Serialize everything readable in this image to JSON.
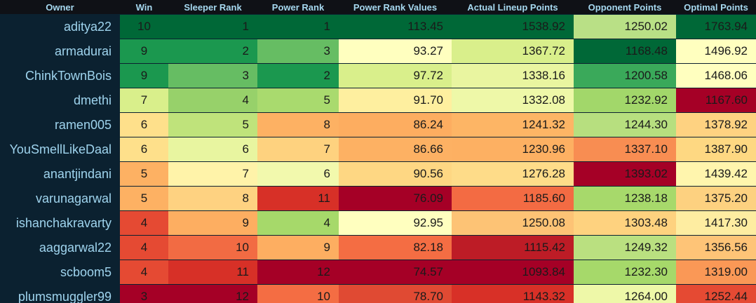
{
  "table": {
    "columns": [
      "Owner",
      "Win",
      "Sleeper Rank",
      "Power Rank",
      "Power Rank Values",
      "Actual Lineup Points",
      "Opponent Points",
      "Optimal Points"
    ],
    "rows": [
      {
        "owner": "aditya22",
        "cells": [
          "10",
          "1",
          "1",
          "113.45",
          "1538.92",
          "1250.02",
          "1763.94"
        ],
        "colors": [
          "#006837",
          "#006837",
          "#006837",
          "#006837",
          "#006837",
          "#b9e086",
          "#006837"
        ]
      },
      {
        "owner": "armadurai",
        "cells": [
          "9",
          "2",
          "3",
          "93.27",
          "1367.72",
          "1168.48",
          "1496.92"
        ],
        "colors": [
          "#1b984f",
          "#1b984f",
          "#66bd63",
          "#ffffbf",
          "#d9ef8b",
          "#006837",
          "#ffffbf"
        ]
      },
      {
        "owner": "ChinkTownBois",
        "cells": [
          "9",
          "3",
          "2",
          "97.72",
          "1338.16",
          "1200.58",
          "1468.06"
        ],
        "colors": [
          "#1b984f",
          "#66bd63",
          "#1b984f",
          "#d9ef8b",
          "#e9f5a0",
          "#3aa95a",
          "#ffffbf"
        ]
      },
      {
        "owner": "dmethi",
        "cells": [
          "7",
          "4",
          "5",
          "91.70",
          "1332.08",
          "1232.92",
          "1167.60"
        ],
        "colors": [
          "#d9ef8b",
          "#97d16a",
          "#a9da6e",
          "#feef9f",
          "#eef8a8",
          "#a2d76a",
          "#a50026"
        ]
      },
      {
        "owner": "ramen005",
        "cells": [
          "6",
          "5",
          "8",
          "86.24",
          "1241.32",
          "1244.30",
          "1378.92"
        ],
        "colors": [
          "#fee08b",
          "#bfe37b",
          "#fdb163",
          "#fdad60",
          "#fdb565",
          "#b7df7f",
          "#fed281"
        ]
      },
      {
        "owner": "YouSmellLikeDaal",
        "cells": [
          "6",
          "6",
          "7",
          "86.66",
          "1230.96",
          "1337.10",
          "1387.90"
        ],
        "colors": [
          "#fee08b",
          "#e8f5a0",
          "#fed27f",
          "#fdb163",
          "#fdb062",
          "#f88d52",
          "#fed882"
        ]
      },
      {
        "owner": "anantjindani",
        "cells": [
          "5",
          "7",
          "6",
          "90.56",
          "1276.28",
          "1393.02",
          "1439.42"
        ],
        "colors": [
          "#fdb163",
          "#fff3a9",
          "#f2f9ad",
          "#fed783",
          "#fedc89",
          "#a50026",
          "#fff5ad"
        ]
      },
      {
        "owner": "varunagarwal",
        "cells": [
          "5",
          "8",
          "11",
          "76.09",
          "1185.60",
          "1238.18",
          "1375.20"
        ],
        "colors": [
          "#fdb163",
          "#fed281",
          "#d73027",
          "#a50026",
          "#f36b43",
          "#a7d96b",
          "#fdd180"
        ]
      },
      {
        "owner": "ishanchakravarty",
        "cells": [
          "4",
          "9",
          "4",
          "92.95",
          "1250.08",
          "1303.48",
          "1417.30"
        ],
        "colors": [
          "#e54a33",
          "#fdae61",
          "#a6d96a",
          "#ffffbf",
          "#fdc375",
          "#fed27f",
          "#feeda1"
        ]
      },
      {
        "owner": "aaggarwal22",
        "cells": [
          "4",
          "10",
          "9",
          "82.18",
          "1115.42",
          "1249.32",
          "1356.56"
        ],
        "colors": [
          "#e54a33",
          "#f26b43",
          "#fdae61",
          "#f46d43",
          "#bd1c26",
          "#bae080",
          "#fec477"
        ]
      },
      {
        "owner": "scboom5",
        "cells": [
          "4",
          "11",
          "12",
          "74.57",
          "1093.84",
          "1232.30",
          "1319.00"
        ],
        "colors": [
          "#e54a33",
          "#d73027",
          "#a50026",
          "#a50026",
          "#a50026",
          "#a6d96a",
          "#fa9856"
        ]
      },
      {
        "owner": "plumsmuggler99",
        "cells": [
          "3",
          "12",
          "10",
          "78.70",
          "1143.32",
          "1264.00",
          "1252.44"
        ],
        "colors": [
          "#a50026",
          "#a50026",
          "#f46d43",
          "#e04a33",
          "#d83027",
          "#eef8a8",
          "#e54a33"
        ]
      }
    ]
  }
}
